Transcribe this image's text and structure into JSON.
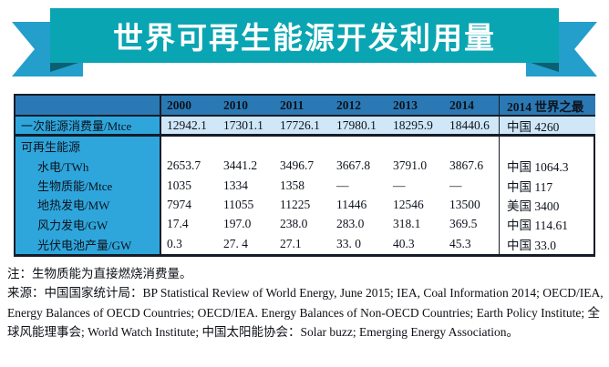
{
  "banner": {
    "title": "世界可再生能源开发利用量"
  },
  "table": {
    "col_headers": [
      "",
      "2000",
      "2010",
      "2011",
      "2012",
      "2013",
      "2014",
      "2014 世界之最"
    ],
    "rows": [
      {
        "label": "一次能源消费量/Mtce",
        "values": [
          "12942.1",
          "17301.1",
          "17726.1",
          "17980.1",
          "18295.9",
          "18440.6"
        ],
        "world_best": "中国 4260"
      },
      {
        "label": "可再生能源",
        "values": [
          "",
          "",
          "",
          "",
          "",
          ""
        ],
        "world_best": ""
      },
      {
        "label": "水电/TWh",
        "values": [
          "2653.7",
          "3441.2",
          "3496.7",
          "3667.8",
          "3791.0",
          "3867.6"
        ],
        "world_best": "中国 1064.3"
      },
      {
        "label": "生物质能/Mtce",
        "values": [
          "1035",
          "1334",
          "1358",
          "—",
          "—",
          "—"
        ],
        "world_best": "中国 117"
      },
      {
        "label": "地热发电/MW",
        "values": [
          "7974",
          "11055",
          "11225",
          "11446",
          "12546",
          "13500"
        ],
        "world_best": "美国 3400"
      },
      {
        "label": "风力发电/GW",
        "values": [
          "17.4",
          "197.0",
          "238.0",
          "283.0",
          "318.1",
          "369.5"
        ],
        "world_best": "中国 114.61"
      },
      {
        "label": "光伏电池产量/GW",
        "values": [
          "0.3",
          "27. 4",
          "27.1",
          "33. 0",
          "40.3",
          "45.3"
        ],
        "world_best": "中国 33.0"
      }
    ]
  },
  "notes": {
    "note": "注：生物质能为直接燃烧消费量。",
    "source": "来源：中国国家统计局：BP Statistical Review of World Energy, June 2015; IEA, Coal Information 2014; OECD/IEA, Energy Balances of OECD Countries; OECD/IEA. Energy Balances of Non-OECD Countries; Earth Policy Institute; 全球风能理事会; World Watch Institute; 中国太阳能协会：Solar buzz; Emerging Energy Association。"
  },
  "colors": {
    "ribbon_band": "#0aa5b2",
    "ribbon_tail": "#249ecb",
    "ribbon_fold": "#0b5f73",
    "header_blue": "#2b79b4",
    "label_cyan": "#2ea6dc",
    "highlight_row_blue": "#cfe7f7",
    "table_border": "#151c28",
    "title_text": "#ffffff"
  }
}
